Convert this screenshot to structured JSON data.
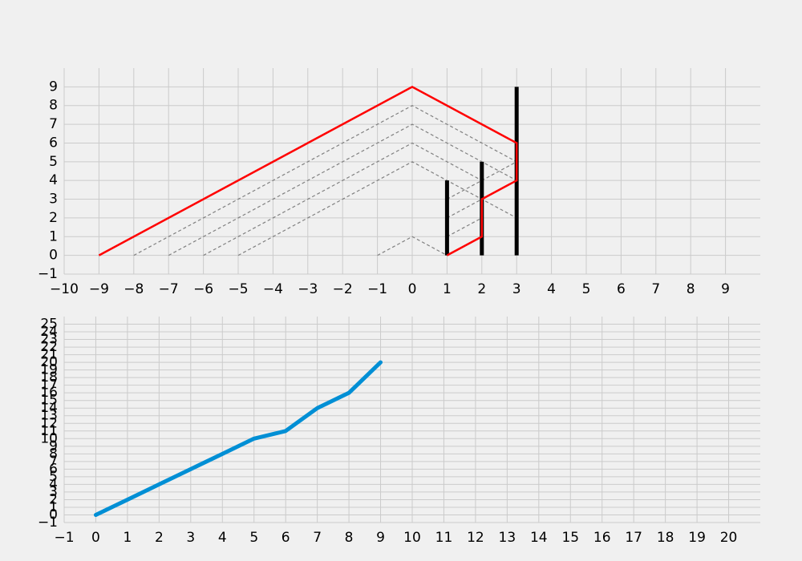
{
  "chart_data": [
    {
      "type": "line",
      "title": "",
      "xlabel": "",
      "ylabel": "",
      "xlim": [
        -10,
        10
      ],
      "ylim": [
        -1,
        10
      ],
      "x_ticks": [
        -10,
        -9,
        -8,
        -7,
        -6,
        -5,
        -4,
        -3,
        -2,
        -1,
        0,
        1,
        2,
        3,
        4,
        5,
        6,
        7,
        8,
        9
      ],
      "y_ticks": [
        -1,
        0,
        1,
        2,
        3,
        4,
        5,
        6,
        7,
        8,
        9
      ],
      "grid": true,
      "colors": {
        "envelope": "#ff0000",
        "guides": "#808080",
        "bars": "#000000"
      },
      "envelope": {
        "x": [
          -9,
          0,
          3,
          3,
          2,
          2,
          1,
          2,
          2,
          3,
          3
        ],
        "y": [
          0,
          9,
          6,
          4,
          3,
          1,
          0,
          1,
          3,
          4,
          6
        ]
      },
      "bars": [
        {
          "x": 1,
          "height": 4
        },
        {
          "x": 2,
          "height": 5
        },
        {
          "x": 3,
          "height": 9
        }
      ],
      "guide_lines": [
        {
          "x": [
            -8,
            0,
            3
          ],
          "y": [
            0,
            8,
            5
          ]
        },
        {
          "x": [
            -7,
            0,
            3
          ],
          "y": [
            0,
            7,
            4
          ]
        },
        {
          "x": [
            -6,
            0,
            2
          ],
          "y": [
            0,
            6,
            4
          ]
        },
        {
          "x": [
            -5,
            0,
            3
          ],
          "y": [
            0,
            5,
            2
          ]
        },
        {
          "x": [
            1,
            3
          ],
          "y": [
            3,
            5
          ]
        },
        {
          "x": [
            1,
            2
          ],
          "y": [
            2,
            3
          ]
        },
        {
          "x": [
            1,
            2
          ],
          "y": [
            1,
            2
          ]
        },
        {
          "x": [
            -1,
            0,
            1
          ],
          "y": [
            0,
            1,
            0
          ]
        }
      ]
    },
    {
      "type": "line",
      "title": "",
      "xlabel": "",
      "ylabel": "",
      "xlim": [
        -1,
        21
      ],
      "ylim": [
        -1,
        26
      ],
      "x_ticks": [
        -1,
        0,
        1,
        2,
        3,
        4,
        5,
        6,
        7,
        8,
        9,
        10,
        11,
        12,
        13,
        14,
        15,
        16,
        17,
        18,
        19,
        20
      ],
      "y_ticks": [
        -1,
        0,
        1,
        2,
        3,
        4,
        5,
        6,
        7,
        8,
        9,
        10,
        11,
        12,
        13,
        14,
        15,
        16,
        17,
        18,
        19,
        20,
        21,
        22,
        23,
        24,
        25
      ],
      "grid": true,
      "colors": {
        "series": "#008fd5"
      },
      "series": [
        {
          "x": [
            0,
            1,
            2,
            3,
            4,
            5,
            6,
            7,
            8,
            9
          ],
          "y": [
            0,
            2,
            4,
            6,
            8,
            10,
            11,
            14,
            16,
            20
          ]
        }
      ]
    }
  ]
}
